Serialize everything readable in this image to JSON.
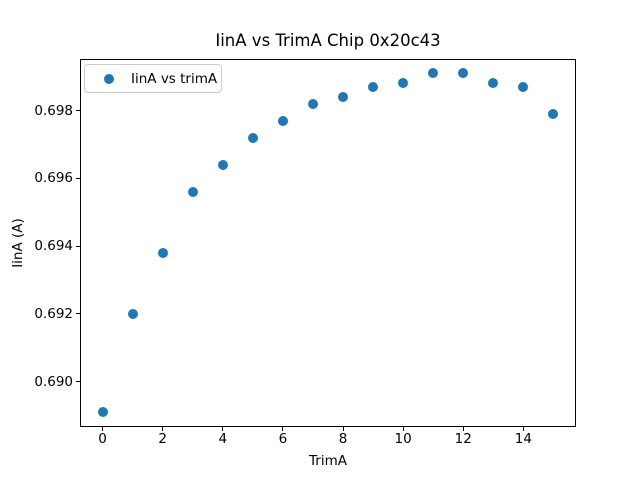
{
  "chart_data": {
    "type": "scatter",
    "title": "IinA vs TrimA Chip 0x20c43",
    "xlabel": "TrimA",
    "ylabel": "IinA (A)",
    "legend": {
      "position": "upper-left",
      "entries": [
        "IinA vs trimA"
      ]
    },
    "x": [
      0,
      1,
      2,
      3,
      4,
      5,
      6,
      7,
      8,
      9,
      10,
      11,
      12,
      13,
      14,
      15
    ],
    "y": [
      0.6891,
      0.692,
      0.6938,
      0.6956,
      0.6964,
      0.6972,
      0.6977,
      0.6982,
      0.6984,
      0.6987,
      0.6988,
      0.6991,
      0.6991,
      0.6988,
      0.6987,
      0.6979
    ],
    "xticks": [
      0,
      2,
      4,
      6,
      8,
      10,
      12,
      14
    ],
    "yticks": [
      0.69,
      0.692,
      0.694,
      0.696,
      0.698
    ],
    "xlim": [
      -0.75,
      15.75
    ],
    "ylim": [
      0.68866,
      0.69952
    ],
    "marker_color": "#1f77b4",
    "grid": false,
    "background_color": "#ffffff"
  }
}
